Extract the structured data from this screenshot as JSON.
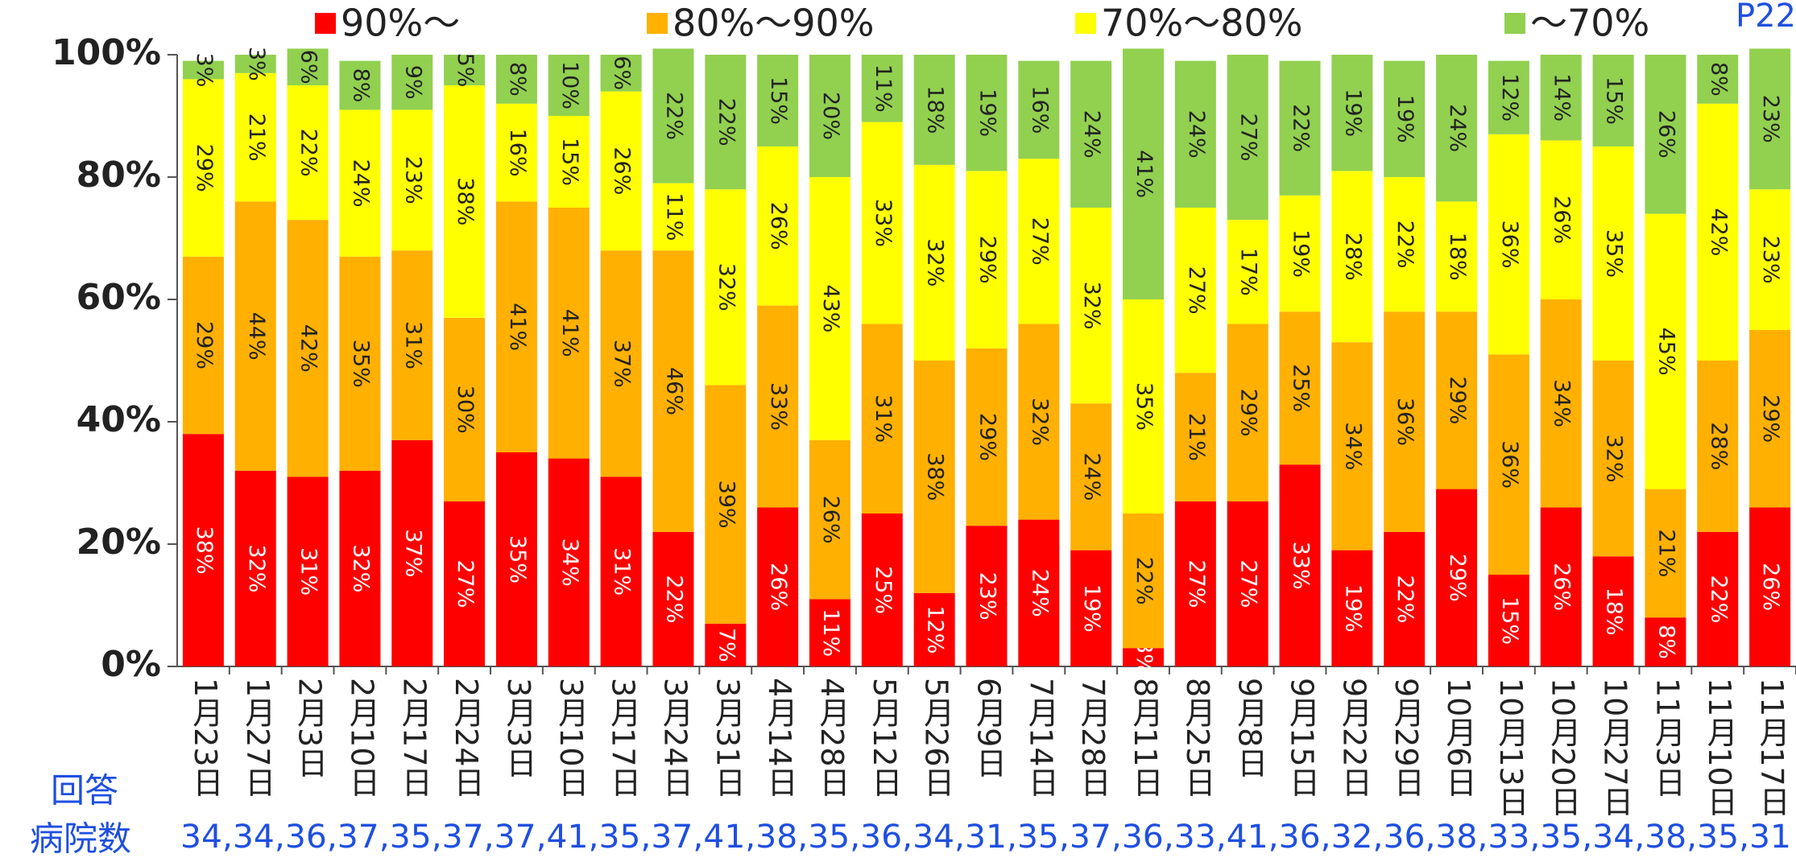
{
  "chart_data": {
    "type": "stacked_bar",
    "corner_label": "P22",
    "response_label_1": "回答",
    "response_label_2": "病院数",
    "response_counts": "34,34,36,37,35,37,37,41,35,37,41,38,35,36,34,31,35,37,36,33,41,36,32,36,38,33,35,34,38,35,31",
    "categories": [
      "1月23日",
      "1月27日",
      "2月3日",
      "2月10日",
      "2月17日",
      "2月24日",
      "3月3日",
      "3月10日",
      "3月17日",
      "3月24日",
      "3月31日",
      "4月14日",
      "4月28日",
      "5月12日",
      "5月26日",
      "6月9日",
      "7月14日",
      "7月28日",
      "8月11日",
      "8月25日",
      "9月8日",
      "9月15日",
      "9月22日",
      "9月29日",
      "10月6日",
      "10月13日",
      "10月20日",
      "10月27日",
      "11月3日",
      "11月10日",
      "11月17日"
    ],
    "series": [
      {
        "name": "90%〜",
        "color": "#ff0000",
        "values": [
          38,
          32,
          31,
          32,
          37,
          27,
          35,
          34,
          31,
          22,
          7,
          26,
          11,
          25,
          12,
          23,
          24,
          19,
          3,
          27,
          27,
          33,
          19,
          22,
          29,
          15,
          26,
          18,
          8,
          22,
          26
        ],
        "value_labels": [
          "38%",
          "32%",
          "31%",
          "32%",
          "37%",
          "27%",
          "35%",
          "34%",
          "31%",
          "22%",
          "7%",
          "26%",
          "11%",
          "25%",
          "12%",
          "23%",
          "24%",
          "19%",
          "3%",
          "27%",
          "27%",
          "33%",
          "19%",
          "22%",
          "29%",
          "15%",
          "26%",
          "18%",
          "8%",
          "22%",
          "26%"
        ]
      },
      {
        "name": "80%〜90%",
        "color": "#ffb000",
        "values": [
          29,
          44,
          42,
          35,
          31,
          30,
          41,
          41,
          37,
          46,
          39,
          33,
          26,
          31,
          38,
          29,
          32,
          24,
          22,
          21,
          29,
          25,
          34,
          36,
          29,
          36,
          34,
          32,
          21,
          28,
          29
        ],
        "value_labels": [
          "29%",
          "44%",
          "42%",
          "35%",
          "31%",
          "30%",
          "41%",
          "41%",
          "37%",
          "46%",
          "39%",
          "33%",
          "26%",
          "31%",
          "38%",
          "29%",
          "32%",
          "24%",
          "22%",
          "21%",
          "29%",
          "25%",
          "34%",
          "36%",
          "29%",
          "36%",
          "34%",
          "32%",
          "21%",
          "28%",
          "29%"
        ]
      },
      {
        "name": "70%〜80%",
        "color": "#ffff00",
        "values": [
          29,
          21,
          22,
          24,
          23,
          38,
          16,
          15,
          26,
          11,
          32,
          26,
          43,
          33,
          32,
          29,
          27,
          32,
          35,
          27,
          17,
          19,
          28,
          22,
          18,
          36,
          26,
          35,
          45,
          42,
          23
        ],
        "value_labels": [
          "29%",
          "21%",
          "22%",
          "24%",
          "23%",
          "38%",
          "16%",
          "15%",
          "26%",
          "11%",
          "32%",
          "26%",
          "43%",
          "33%",
          "32%",
          "29%",
          "27%",
          "32%",
          "35%",
          "27%",
          "17%",
          "19%",
          "28%",
          "22%",
          "18%",
          "36%",
          "26%",
          "35%",
          "45%",
          "42%",
          "23%"
        ]
      },
      {
        "name": "〜70%",
        "color": "#92d050",
        "values": [
          3,
          3,
          6,
          8,
          9,
          5,
          8,
          10,
          6,
          22,
          22,
          15,
          20,
          11,
          18,
          19,
          16,
          24,
          41,
          24,
          27,
          22,
          19,
          19,
          24,
          12,
          14,
          15,
          26,
          8,
          23
        ],
        "value_labels": [
          "3%",
          "3%",
          "6%",
          "8%",
          "9%",
          "5%",
          "8%",
          "10%",
          "6%",
          "22%",
          "22%",
          "15%",
          "20%",
          "11%",
          "18%",
          "19%",
          "16%",
          "24%",
          "41%",
          "24%",
          "27%",
          "22%",
          "19%",
          "19%",
          "24%",
          "12%",
          "14%",
          "15%",
          "26%",
          "8%",
          "23%"
        ]
      }
    ],
    "ylim": [
      0,
      100
    ],
    "yticks": [
      {
        "value": 0,
        "label": "0%"
      },
      {
        "value": 20,
        "label": "20%"
      },
      {
        "value": 40,
        "label": "40%"
      },
      {
        "value": 60,
        "label": "60%"
      },
      {
        "value": 80,
        "label": "80%"
      },
      {
        "value": 100,
        "label": "100%"
      }
    ]
  }
}
